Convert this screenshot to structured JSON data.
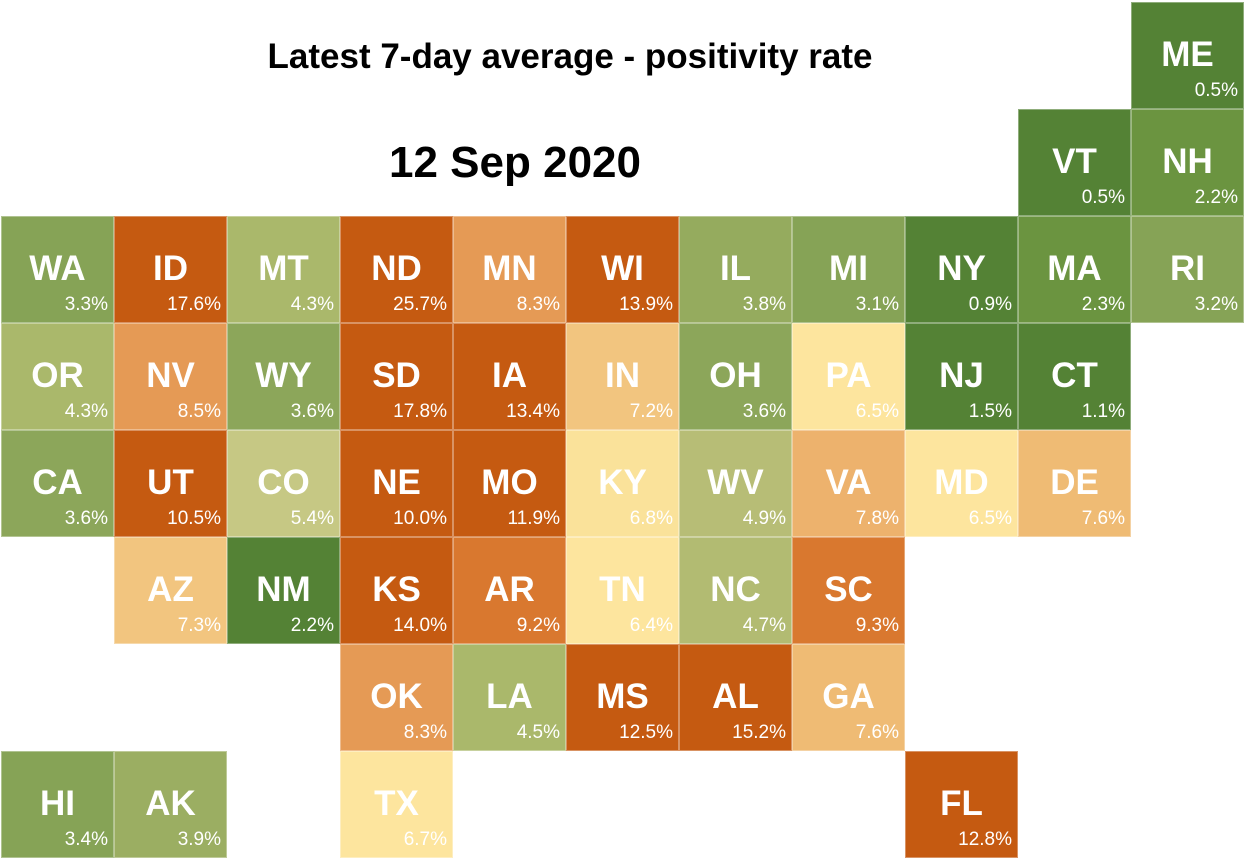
{
  "title": "Latest 7-day average - positivity rate",
  "date": "12 Sep 2020",
  "colors": {
    "dark_green": "#548235",
    "green": "#6b9440",
    "mid_green": "#86a356",
    "olive": "#aab86b",
    "pale_olive": "#c6c884",
    "light_yellow": "#fde59e",
    "yellow": "#f8d98f",
    "light_orange": "#f2c57f",
    "orange_tan": "#edb26d",
    "orange": "#e59a55",
    "dark_orange": "#d9782f",
    "burnt_orange": "#c55a11"
  },
  "states": [
    {
      "abbr": "ME",
      "value": "0.5%",
      "row": 0,
      "col": 10,
      "color": "#548235"
    },
    {
      "abbr": "VT",
      "value": "0.5%",
      "row": 1,
      "col": 9,
      "color": "#548235"
    },
    {
      "abbr": "NH",
      "value": "2.2%",
      "row": 1,
      "col": 10,
      "color": "#6b9440"
    },
    {
      "abbr": "WA",
      "value": "3.3%",
      "row": 2,
      "col": 0,
      "color": "#86a356"
    },
    {
      "abbr": "ID",
      "value": "17.6%",
      "row": 2,
      "col": 1,
      "color": "#c55a11"
    },
    {
      "abbr": "MT",
      "value": "4.3%",
      "row": 2,
      "col": 2,
      "color": "#aab86b"
    },
    {
      "abbr": "ND",
      "value": "25.7%",
      "row": 2,
      "col": 3,
      "color": "#c55a11"
    },
    {
      "abbr": "MN",
      "value": "8.3%",
      "row": 2,
      "col": 4,
      "color": "#e59a55"
    },
    {
      "abbr": "WI",
      "value": "13.9%",
      "row": 2,
      "col": 5,
      "color": "#c55a11"
    },
    {
      "abbr": "IL",
      "value": "3.8%",
      "row": 2,
      "col": 6,
      "color": "#95ab5e"
    },
    {
      "abbr": "MI",
      "value": "3.1%",
      "row": 2,
      "col": 7,
      "color": "#86a356"
    },
    {
      "abbr": "NY",
      "value": "0.9%",
      "row": 2,
      "col": 8,
      "color": "#548235"
    },
    {
      "abbr": "MA",
      "value": "2.3%",
      "row": 2,
      "col": 9,
      "color": "#6b9440"
    },
    {
      "abbr": "RI",
      "value": "3.2%",
      "row": 2,
      "col": 10,
      "color": "#86a356"
    },
    {
      "abbr": "OR",
      "value": "4.3%",
      "row": 3,
      "col": 0,
      "color": "#aab86b"
    },
    {
      "abbr": "NV",
      "value": "8.5%",
      "row": 3,
      "col": 1,
      "color": "#e59a55"
    },
    {
      "abbr": "WY",
      "value": "3.6%",
      "row": 3,
      "col": 2,
      "color": "#8ca65a"
    },
    {
      "abbr": "SD",
      "value": "17.8%",
      "row": 3,
      "col": 3,
      "color": "#c55a11"
    },
    {
      "abbr": "IA",
      "value": "13.4%",
      "row": 3,
      "col": 4,
      "color": "#c55a11"
    },
    {
      "abbr": "IN",
      "value": "7.2%",
      "row": 3,
      "col": 5,
      "color": "#f2c57f"
    },
    {
      "abbr": "OH",
      "value": "3.6%",
      "row": 3,
      "col": 6,
      "color": "#8ca65a"
    },
    {
      "abbr": "PA",
      "value": "6.5%",
      "row": 3,
      "col": 7,
      "color": "#fde59e"
    },
    {
      "abbr": "NJ",
      "value": "1.5%",
      "row": 3,
      "col": 8,
      "color": "#548235"
    },
    {
      "abbr": "CT",
      "value": "1.1%",
      "row": 3,
      "col": 9,
      "color": "#548235"
    },
    {
      "abbr": "CA",
      "value": "3.6%",
      "row": 4,
      "col": 0,
      "color": "#8ca65a"
    },
    {
      "abbr": "UT",
      "value": "10.5%",
      "row": 4,
      "col": 1,
      "color": "#c55a11"
    },
    {
      "abbr": "CO",
      "value": "5.4%",
      "row": 4,
      "col": 2,
      "color": "#c6c884"
    },
    {
      "abbr": "NE",
      "value": "10.0%",
      "row": 4,
      "col": 3,
      "color": "#c55a11"
    },
    {
      "abbr": "MO",
      "value": "11.9%",
      "row": 4,
      "col": 4,
      "color": "#c55a11"
    },
    {
      "abbr": "KY",
      "value": "6.8%",
      "row": 4,
      "col": 5,
      "color": "#fae29a"
    },
    {
      "abbr": "WV",
      "value": "4.9%",
      "row": 4,
      "col": 6,
      "color": "#b7bd76"
    },
    {
      "abbr": "VA",
      "value": "7.8%",
      "row": 4,
      "col": 7,
      "color": "#edb26d"
    },
    {
      "abbr": "MD",
      "value": "6.5%",
      "row": 4,
      "col": 8,
      "color": "#fde59e"
    },
    {
      "abbr": "DE",
      "value": "7.6%",
      "row": 4,
      "col": 9,
      "color": "#efbb74"
    },
    {
      "abbr": "AZ",
      "value": "7.3%",
      "row": 5,
      "col": 1,
      "color": "#f2c57f"
    },
    {
      "abbr": "NM",
      "value": "2.2%",
      "row": 5,
      "col": 2,
      "color": "#548235"
    },
    {
      "abbr": "KS",
      "value": "14.0%",
      "row": 5,
      "col": 3,
      "color": "#c55a11"
    },
    {
      "abbr": "AR",
      "value": "9.2%",
      "row": 5,
      "col": 4,
      "color": "#d9782f"
    },
    {
      "abbr": "TN",
      "value": "6.4%",
      "row": 5,
      "col": 5,
      "color": "#fde59e"
    },
    {
      "abbr": "NC",
      "value": "4.7%",
      "row": 5,
      "col": 6,
      "color": "#b2bb72"
    },
    {
      "abbr": "SC",
      "value": "9.3%",
      "row": 5,
      "col": 7,
      "color": "#d9782f"
    },
    {
      "abbr": "OK",
      "value": "8.3%",
      "row": 6,
      "col": 3,
      "color": "#e59a55"
    },
    {
      "abbr": "LA",
      "value": "4.5%",
      "row": 6,
      "col": 4,
      "color": "#aab86b"
    },
    {
      "abbr": "MS",
      "value": "12.5%",
      "row": 6,
      "col": 5,
      "color": "#c55a11"
    },
    {
      "abbr": "AL",
      "value": "15.2%",
      "row": 6,
      "col": 6,
      "color": "#c55a11"
    },
    {
      "abbr": "GA",
      "value": "7.6%",
      "row": 6,
      "col": 7,
      "color": "#efbb74"
    },
    {
      "abbr": "HI",
      "value": "3.4%",
      "row": 7,
      "col": 0,
      "color": "#86a356"
    },
    {
      "abbr": "AK",
      "value": "3.9%",
      "row": 7,
      "col": 1,
      "color": "#9bae62"
    },
    {
      "abbr": "TX",
      "value": "6.7%",
      "row": 7,
      "col": 3,
      "color": "#fde59e"
    },
    {
      "abbr": "FL",
      "value": "12.8%",
      "row": 7,
      "col": 8,
      "color": "#c55a11"
    }
  ]
}
